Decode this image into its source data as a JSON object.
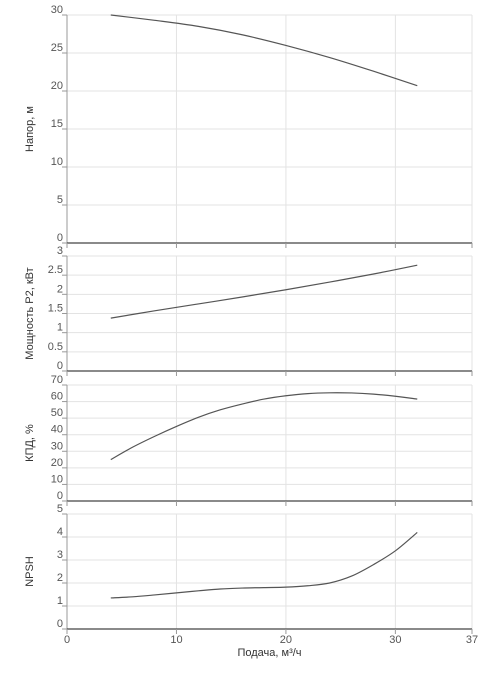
{
  "chart_data": [
    {
      "type": "line",
      "ylabel": "Напор, м",
      "xlim": [
        0,
        37
      ],
      "ylim": [
        0,
        30
      ],
      "yticks": [
        0,
        5,
        10,
        15,
        20,
        25,
        30
      ],
      "xticks": [
        0,
        10,
        20,
        30,
        37
      ],
      "grid": true,
      "series": [
        {
          "x": [
            4,
            8,
            12,
            16,
            20,
            24,
            28,
            32
          ],
          "y": [
            30.0,
            29.3,
            28.5,
            27.4,
            26.0,
            24.4,
            22.6,
            20.7
          ]
        }
      ]
    },
    {
      "type": "line",
      "ylabel": "Мощность P2, кВт",
      "xlim": [
        0,
        37
      ],
      "ylim": [
        0,
        3
      ],
      "yticks": [
        0,
        0.5,
        1,
        1.5,
        2,
        2.5,
        3
      ],
      "xticks": [
        0,
        10,
        20,
        30,
        37
      ],
      "grid": true,
      "series": [
        {
          "x": [
            4,
            8,
            12,
            16,
            20,
            24,
            28,
            32
          ],
          "y": [
            1.38,
            1.57,
            1.75,
            1.93,
            2.12,
            2.32,
            2.53,
            2.76
          ]
        }
      ]
    },
    {
      "type": "line",
      "ylabel": "КПД, %",
      "xlim": [
        0,
        37
      ],
      "ylim": [
        0,
        70
      ],
      "yticks": [
        0,
        10,
        20,
        30,
        40,
        50,
        60,
        70
      ],
      "xticks": [
        0,
        10,
        20,
        30,
        37
      ],
      "grid": true,
      "series": [
        {
          "x": [
            4,
            6,
            8,
            10,
            12,
            14,
            16,
            18,
            20,
            22,
            24,
            26,
            28,
            30,
            32
          ],
          "y": [
            25,
            32.5,
            39,
            45,
            50.5,
            55,
            58.5,
            61.5,
            63.5,
            64.8,
            65.3,
            65.2,
            64.5,
            63.2,
            61.5
          ]
        }
      ]
    },
    {
      "type": "line",
      "ylabel": "NPSH",
      "xlabel": "Подача, м³/ч",
      "xlim": [
        0,
        37
      ],
      "ylim": [
        0,
        5
      ],
      "yticks": [
        0,
        1,
        2,
        3,
        4,
        5
      ],
      "xticks": [
        0,
        10,
        20,
        30,
        37
      ],
      "grid": true,
      "series": [
        {
          "x": [
            4,
            6,
            8,
            10,
            12,
            14,
            16,
            18,
            20,
            22,
            24,
            26,
            28,
            30,
            32
          ],
          "y": [
            1.35,
            1.4,
            1.48,
            1.57,
            1.66,
            1.74,
            1.78,
            1.8,
            1.82,
            1.88,
            2.0,
            2.3,
            2.8,
            3.4,
            4.2
          ]
        }
      ]
    }
  ]
}
